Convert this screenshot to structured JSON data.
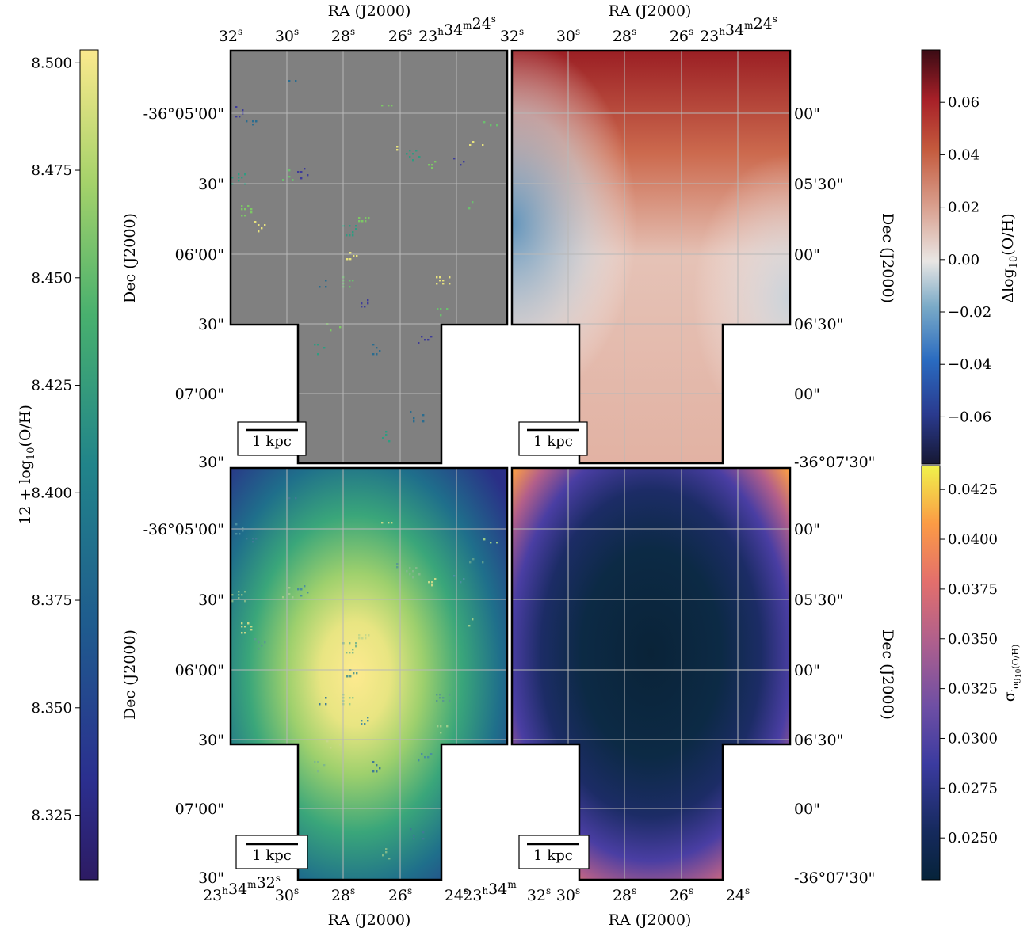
{
  "figure_type": "four-panel sky map with colorbars",
  "colors": {
    "background_gray": "#808080",
    "grid": "#b8b8b8",
    "outline": "#000000"
  },
  "colorbars": {
    "left": {
      "label": "12 + log10(O/H)",
      "label_main": "12 + log",
      "label_sub": "10",
      "label_tail": "(O/H)",
      "colormap": "viridis-like",
      "range": [
        8.31,
        8.503
      ],
      "ticks": [
        "8.325",
        "8.350",
        "8.375",
        "8.400",
        "8.425",
        "8.450",
        "8.475",
        "8.500"
      ]
    },
    "right_top": {
      "label": "Δlog10(O/H)",
      "label_main": "Δlog",
      "label_sub": "10",
      "label_tail": "(O/H)",
      "colormap": "diverging blue-white-red",
      "range": [
        -0.078,
        0.08
      ],
      "ticks": [
        "−0.06",
        "−0.04",
        "−0.02",
        "0.00",
        "0.02",
        "0.04",
        "0.06"
      ]
    },
    "right_bottom": {
      "label": "σ log10(O/H)",
      "label_main": "σ",
      "label_sub": "log",
      "label_subsub": "10",
      "label_tail": "(O/H)",
      "colormap": "thermal dark-blue to yellow",
      "range": [
        0.0229,
        0.0437
      ],
      "ticks": [
        "0.0250",
        "0.0275",
        "0.0300",
        "0.0325",
        "0.0350",
        "0.0375",
        "0.0400",
        "0.0425"
      ]
    }
  },
  "axes": {
    "ra_label": "RA (J2000)",
    "dec_label": "Dec (J2000)",
    "ra_top_left": {
      "ticks": [
        {
          "main": "32",
          "sup": "s"
        },
        {
          "main": "30",
          "sup": "s"
        },
        {
          "main": "28",
          "sup": "s"
        },
        {
          "main": "26",
          "sup": "s"
        },
        {
          "main": "23",
          "sup": "h",
          "main2": "34",
          "sup2": "m",
          "main3": "24",
          "sup3": "s"
        }
      ]
    },
    "ra_top_right": {
      "ticks": [
        {
          "main": "32",
          "sup": "s"
        },
        {
          "main": "30",
          "sup": "s"
        },
        {
          "main": "28",
          "sup": "s"
        },
        {
          "main": "26",
          "sup": "s"
        },
        {
          "main": "23",
          "sup": "h",
          "main2": "34",
          "sup2": "m",
          "main3": "24",
          "sup3": "s"
        }
      ]
    },
    "ra_bottom_left": {
      "ticks": [
        {
          "main": "23",
          "sup": "h",
          "main2": "34",
          "sup2": "m",
          "main3": "32",
          "sup3": "s"
        },
        {
          "main": "30",
          "sup": "s"
        },
        {
          "main": "28",
          "sup": "s"
        },
        {
          "main": "26",
          "sup": "s"
        },
        {
          "main": "24",
          "sup": "s"
        },
        {
          "main": "23",
          "sup": "h",
          "main2": "34",
          "sup2": "m"
        }
      ]
    },
    "ra_bottom_right": {
      "ticks": [
        {
          "main": "32",
          "sup": "s"
        },
        {
          "main": "30",
          "sup": "s"
        },
        {
          "main": "28",
          "sup": "s"
        },
        {
          "main": "26",
          "sup": "s"
        },
        {
          "main": "24",
          "sup": "s"
        }
      ]
    },
    "dec_left_top": [
      "-36°05'00\"",
      "30\"",
      "06'00\"",
      "30\"",
      "07'00\"",
      "30\""
    ],
    "dec_left_bottom": [
      "-36°05'00\"",
      "30\"",
      "06'00\"",
      "30\"",
      "07'00\"",
      "30\""
    ],
    "dec_right_top": [
      "00\"",
      "05'30\"",
      "00\"",
      "06'30\"",
      "00\"",
      "-36°07'30\""
    ],
    "dec_right_bottom": [
      "00\"",
      "05'30\"",
      "00\"",
      "06'30\"",
      "00\"",
      "-36°07'30\""
    ]
  },
  "scale_bar_label": "1 kpc",
  "chart_data": [
    {
      "panel": "top-left",
      "type": "scatter",
      "description_of_content": "Observed H II region metallicity points on gray background",
      "colorbar": "left"
    },
    {
      "panel": "top-right",
      "type": "heatmap",
      "description_of_content": "Residual map Δlog10(O/H), range about −0.078 to 0.08",
      "colorbar": "right_top"
    },
    {
      "panel": "bottom-left",
      "type": "heatmap",
      "description_of_content": "Interpolated 12+log10(O/H) map peaking near center (~8.50)",
      "colorbar": "left"
    },
    {
      "panel": "bottom-right",
      "type": "heatmap",
      "description_of_content": "Uncertainty σ map, minimum ~0.023 at center rising to ~0.044 at corners",
      "colorbar": "right_bottom"
    }
  ]
}
